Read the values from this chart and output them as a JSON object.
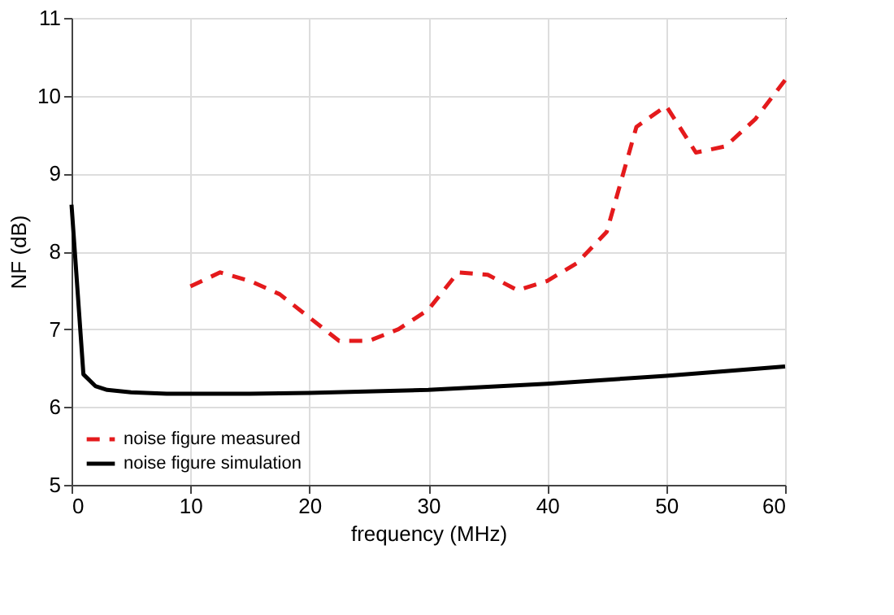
{
  "chart_data": {
    "type": "line",
    "xlabel": "frequency (MHz)",
    "ylabel": "NF (dB)",
    "xlim": [
      0,
      60
    ],
    "xticks": [
      0,
      10,
      20,
      30,
      40,
      50,
      60
    ],
    "ylim": [
      5,
      11
    ],
    "yticks": [
      5,
      6,
      7,
      8,
      9,
      10,
      11
    ],
    "grid": true,
    "legend": "bottom left",
    "marker": "none",
    "series": [
      {
        "name": "noise figure measured",
        "color": "#e41a1c",
        "line_style": "dashed",
        "x": [
          10,
          12.5,
          15,
          17.5,
          20,
          22.5,
          25,
          27.5,
          30,
          32.5,
          35,
          37.5,
          40,
          42.5,
          45,
          47.5,
          50,
          52.5,
          55,
          57.5,
          60
        ],
        "values": [
          7.55,
          7.73,
          7.62,
          7.45,
          7.15,
          6.85,
          6.85,
          7.0,
          7.25,
          7.73,
          7.7,
          7.5,
          7.62,
          7.85,
          8.25,
          9.6,
          9.87,
          9.27,
          9.35,
          9.7,
          10.2
        ]
      },
      {
        "name": "noise figure simulation",
        "color": "#000000",
        "line_style": "solid",
        "x": [
          0,
          1,
          2,
          3,
          5,
          8,
          15,
          20,
          30,
          40,
          50,
          60
        ],
        "values": [
          8.6,
          6.42,
          6.27,
          6.22,
          6.19,
          6.17,
          6.17,
          6.18,
          6.22,
          6.3,
          6.4,
          6.52
        ]
      }
    ]
  }
}
